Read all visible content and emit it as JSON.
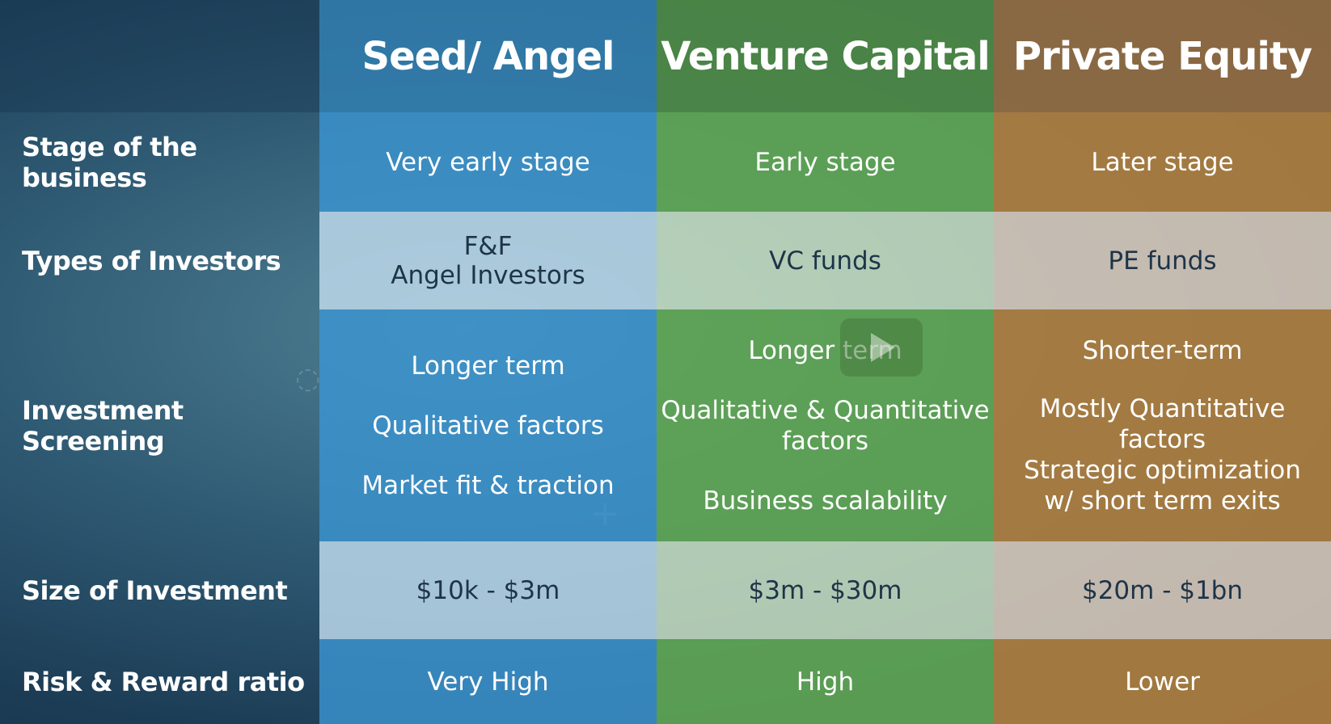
{
  "columns": [
    {
      "title": "Seed/ Angel",
      "color": "#3c96d2"
    },
    {
      "title": "Venture Capital",
      "color": "#62a852"
    },
    {
      "title": "Private Equity",
      "color": "#b0803e"
    }
  ],
  "rows": {
    "stage": {
      "label": "Stage of the business",
      "seed": "Very early stage",
      "vc": "Early stage",
      "pe": "Later stage"
    },
    "types": {
      "label": "Types of Investors",
      "seed": [
        "F&F",
        "Angel Investors"
      ],
      "vc": "VC funds",
      "pe": "PE funds"
    },
    "screening": {
      "label": "Investment Screening",
      "seed": [
        "Longer term",
        "Qualitative factors",
        "Market fit & traction"
      ],
      "vc": [
        "Longer term",
        "Qualitative & Quantitative",
        "factors",
        "Business scalability"
      ],
      "pe": [
        "Shorter-term",
        "Mostly Quantitative factors",
        "Strategic optimization",
        "w/ short term exits"
      ]
    },
    "size": {
      "label": "Size of Investment",
      "seed": "$10k - $3m",
      "vc": "$3m - $30m",
      "pe": "$20m - $1bn"
    },
    "risk": {
      "label": "Risk & Reward ratio",
      "seed": "Very High",
      "vc": "High",
      "pe": "Lower"
    }
  },
  "video_overlay": {
    "icon": "play-icon"
  }
}
